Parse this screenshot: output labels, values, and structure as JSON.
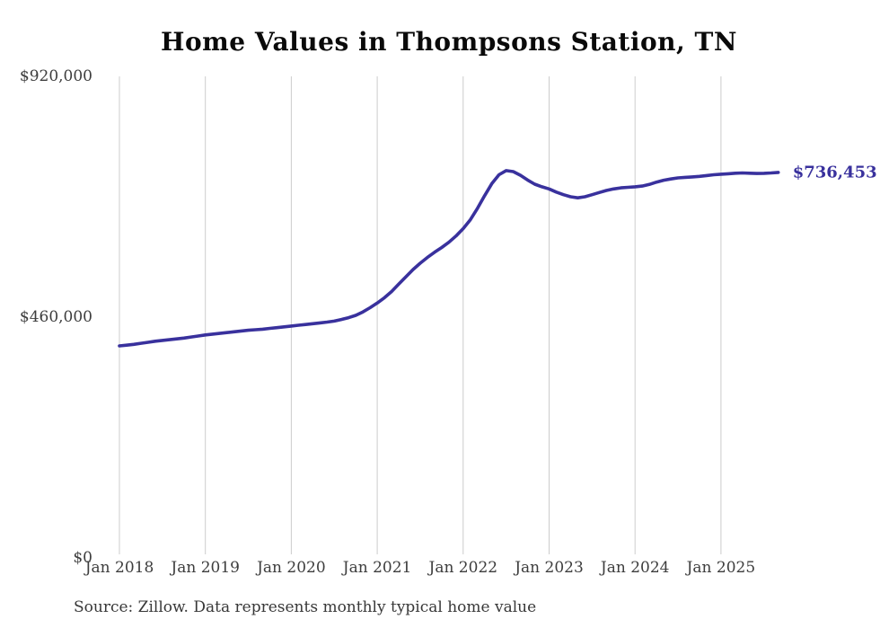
{
  "chart_data": {
    "type": "line",
    "title": "Home Values in Thompsons Station, TN",
    "xlabel": "",
    "ylabel": "",
    "x_start_month": "Jan 2018",
    "x_end_month": "Sep 2025",
    "x_frequency": "monthly",
    "values": [
      405000,
      406500,
      408000,
      410000,
      412000,
      414000,
      415500,
      417000,
      418500,
      420000,
      422000,
      424000,
      426000,
      427500,
      429000,
      430500,
      432000,
      433500,
      435000,
      436000,
      437000,
      438500,
      440000,
      441500,
      443000,
      444500,
      446000,
      447500,
      449000,
      450500,
      452500,
      455500,
      459000,
      463500,
      470000,
      478000,
      487000,
      497000,
      509000,
      523000,
      537000,
      551000,
      563000,
      574000,
      584000,
      593000,
      603000,
      615000,
      629000,
      646000,
      668000,
      692000,
      715000,
      732000,
      740000,
      738000,
      731000,
      722000,
      714000,
      709000,
      705000,
      699000,
      694000,
      690000,
      688000,
      690000,
      694000,
      698000,
      702000,
      705000,
      707000,
      708000,
      709000,
      710500,
      713500,
      718000,
      721500,
      724000,
      726000,
      727000,
      728000,
      729000,
      730500,
      732000,
      733000,
      734000,
      735000,
      735500,
      735000,
      734500,
      734800,
      735500,
      736453
    ],
    "last_value_label": "$736,453",
    "xtick_labels": [
      "Jan 2018",
      "Jan 2019",
      "Jan 2020",
      "Jan 2021",
      "Jan 2022",
      "Jan 2023",
      "Jan 2024",
      "Jan 2025"
    ],
    "yticks": [
      {
        "label": "$0",
        "value": 0
      },
      {
        "label": "$460,000",
        "value": 460000
      },
      {
        "label": "$920,000",
        "value": 920000
      }
    ],
    "ylim": [
      0,
      920000
    ],
    "grid": "vertical-only",
    "legend": "none",
    "line_color": "#39319d",
    "grid_color": "#cccccc",
    "source_note": "Source: Zillow. Data represents monthly typical home value"
  }
}
